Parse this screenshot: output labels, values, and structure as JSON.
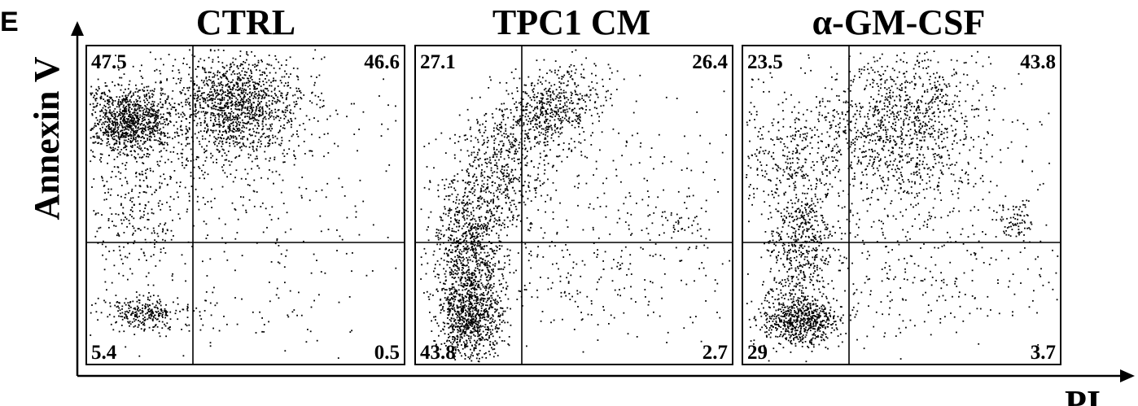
{
  "figure": {
    "panel_letter": "E",
    "ylabel": "Annexin  V",
    "xlabel": "PI"
  },
  "colors": {
    "ink": "#000000",
    "background": "#ffffff"
  },
  "chart_data": [
    {
      "type": "scatter",
      "title": "CTRL",
      "quadrants": {
        "upper_left": "47.5",
        "upper_right": "46.6",
        "lower_left": "5.4",
        "lower_right": "0.5"
      }
    },
    {
      "type": "scatter",
      "title": "TPC1  CM",
      "quadrants": {
        "upper_left": "27.1",
        "upper_right": "26.4",
        "lower_left": "43.8",
        "lower_right": "2.7"
      }
    },
    {
      "type": "scatter",
      "title": "α-GM-CSF",
      "quadrants": {
        "upper_left": "23.5",
        "upper_right": "43.8",
        "lower_left": "29",
        "lower_right": "3.7"
      }
    }
  ]
}
